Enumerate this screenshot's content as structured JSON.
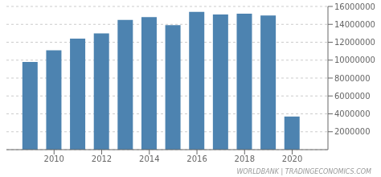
{
  "chart_data": {
    "type": "bar",
    "x": [
      2009,
      2010,
      2011,
      2012,
      2013,
      2014,
      2015,
      2016,
      2017,
      2018,
      2019,
      2020
    ],
    "values": [
      9800000,
      11100000,
      12400000,
      13000000,
      14500000,
      14800000,
      13900000,
      15400000,
      15100000,
      15200000,
      15000000,
      3700000
    ],
    "color": "#4d83b0",
    "xlim": [
      2008.0,
      2021.5
    ],
    "xticks": [
      2010,
      2012,
      2014,
      2016,
      2018,
      2020
    ],
    "ylim": [
      0,
      16000000
    ],
    "yticks": [
      2000000,
      4000000,
      6000000,
      8000000,
      10000000,
      12000000,
      14000000,
      16000000
    ],
    "grid": true,
    "annotations": [
      "WORLDBANK | TRADINGECONOMICS.COM"
    ]
  }
}
